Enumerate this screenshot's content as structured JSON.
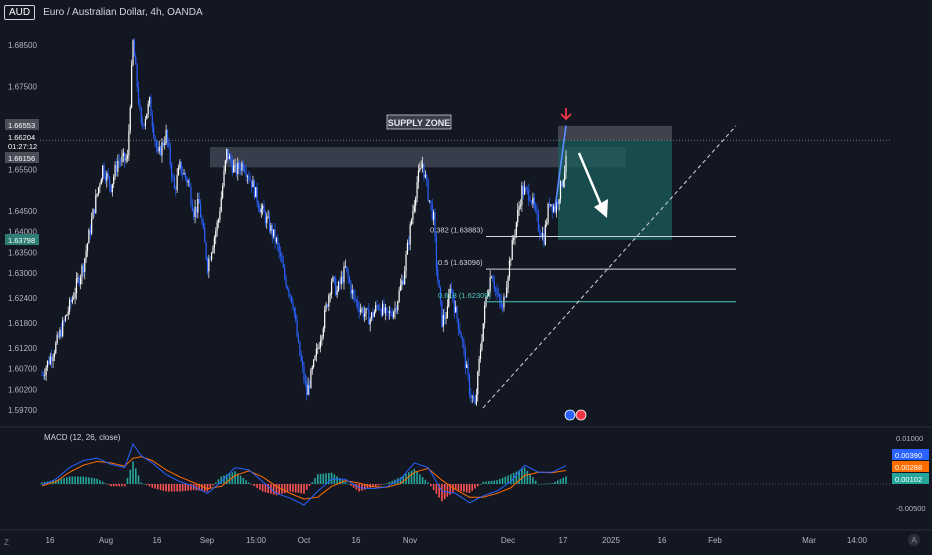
{
  "header": {
    "symbol": "AUD",
    "title": "Euro / Australian Dollar, 4h, OANDA"
  },
  "chart_data": {
    "type": "candlestick",
    "timeframe": "4h",
    "price_axis": {
      "ticks": [
        1.685,
        1.675,
        1.655,
        1.645,
        1.64,
        1.635,
        1.63,
        1.624,
        1.618,
        1.612,
        1.607,
        1.602,
        1.597
      ],
      "tick_labels": [
        "1.68500",
        "1.67500",
        "1.65500",
        "1.64500",
        "1.64000",
        "1.63500",
        "1.63000",
        "1.62400",
        "1.61800",
        "1.61200",
        "1.60700",
        "1.60200",
        "1.59700"
      ],
      "range": [
        1.594,
        1.6885
      ]
    },
    "time_axis": {
      "labels": [
        "16",
        "Aug",
        "16",
        "Sep",
        "15:00",
        "Oct",
        "16",
        "Nov",
        "Dec",
        "17",
        "2025",
        "16",
        "Feb",
        "Mar",
        "14:00"
      ]
    },
    "price_path": [
      [
        0,
        1.6055
      ],
      [
        10,
        1.6125
      ],
      [
        20,
        1.622
      ],
      [
        30,
        1.632
      ],
      [
        38,
        1.646
      ],
      [
        44,
        1.6555
      ],
      [
        50,
        1.651
      ],
      [
        55,
        1.657
      ],
      [
        62,
        1.6575
      ],
      [
        66,
        1.6855
      ],
      [
        72,
        1.665
      ],
      [
        78,
        1.671
      ],
      [
        84,
        1.658
      ],
      [
        90,
        1.6635
      ],
      [
        96,
        1.65
      ],
      [
        100,
        1.6555
      ],
      [
        106,
        1.652
      ],
      [
        110,
        1.645
      ],
      [
        114,
        1.6465
      ],
      [
        120,
        1.632
      ],
      [
        128,
        1.643
      ],
      [
        134,
        1.659
      ],
      [
        140,
        1.6545
      ],
      [
        146,
        1.6565
      ],
      [
        152,
        1.652
      ],
      [
        158,
        1.646
      ],
      [
        164,
        1.642
      ],
      [
        170,
        1.6375
      ],
      [
        176,
        1.629
      ],
      [
        182,
        1.623
      ],
      [
        186,
        1.612
      ],
      [
        192,
        1.601
      ],
      [
        198,
        1.609
      ],
      [
        204,
        1.618
      ],
      [
        210,
        1.6285
      ],
      [
        214,
        1.6255
      ],
      [
        220,
        1.631
      ],
      [
        226,
        1.624
      ],
      [
        232,
        1.621
      ],
      [
        238,
        1.619
      ],
      [
        244,
        1.6225
      ],
      [
        250,
        1.6195
      ],
      [
        256,
        1.6215
      ],
      [
        262,
        1.629
      ],
      [
        268,
        1.643
      ],
      [
        272,
        1.652
      ],
      [
        276,
        1.6565
      ],
      [
        280,
        1.649
      ],
      [
        284,
        1.643
      ],
      [
        286,
        1.632
      ],
      [
        290,
        1.6185
      ],
      [
        294,
        1.6205
      ],
      [
        296,
        1.6275
      ],
      [
        300,
        1.6205
      ],
      [
        304,
        1.615
      ],
      [
        310,
        1.602
      ],
      [
        314,
        1.5975
      ],
      [
        318,
        1.612
      ],
      [
        322,
        1.624
      ],
      [
        326,
        1.6305
      ],
      [
        330,
        1.6245
      ],
      [
        334,
        1.621
      ],
      [
        338,
        1.6305
      ],
      [
        342,
        1.6385
      ],
      [
        348,
        1.65
      ],
      [
        354,
        1.649
      ],
      [
        360,
        1.6415
      ],
      [
        364,
        1.6385
      ],
      [
        368,
        1.6475
      ],
      [
        372,
        1.6455
      ],
      [
        376,
        1.6505
      ],
      [
        380,
        1.6566
      ]
    ],
    "current_price": "1.66204",
    "countdown": "01:27:12",
    "price_labels": [
      "1.66553",
      "1.66156",
      "1.63798"
    ],
    "last_price_level": 1.66204,
    "supply_zone": {
      "label": "SUPPLY ZONE",
      "top": 1.6604,
      "bottom": 1.6555
    },
    "fib_levels": [
      {
        "label": "0.382 (1.63883)",
        "value": 1.63883
      },
      {
        "label": "0.5 (1.63096)",
        "value": 1.63096
      },
      {
        "label": "0.618 (1.62309)",
        "value": 1.62309
      }
    ],
    "trade_box": {
      "top": 1.6655,
      "stop": 1.662,
      "target": 1.63798
    },
    "macd": {
      "title": "MACD (12, 26, close)",
      "ticks": [
        "0.01000",
        "-0.00500"
      ],
      "values": [
        "0.00390",
        "0.00288",
        "0.00102"
      ],
      "colors": [
        "#2962ff",
        "#ff6d00",
        "#26a69a"
      ],
      "path": [
        [
          0,
          -0.0002
        ],
        [
          10,
          0.001
        ],
        [
          20,
          0.0035
        ],
        [
          30,
          0.005
        ],
        [
          40,
          0.0055
        ],
        [
          50,
          0.0042
        ],
        [
          60,
          0.0035
        ],
        [
          66,
          0.0085
        ],
        [
          72,
          0.006
        ],
        [
          80,
          0.0045
        ],
        [
          90,
          0.002
        ],
        [
          100,
          0.0005
        ],
        [
          110,
          -0.0005
        ],
        [
          120,
          -0.002
        ],
        [
          130,
          0.0005
        ],
        [
          140,
          0.0035
        ],
        [
          150,
          0.003
        ],
        [
          160,
          0.0005
        ],
        [
          170,
          -0.002
        ],
        [
          180,
          -0.003
        ],
        [
          190,
          -0.0045
        ],
        [
          200,
          -0.0015
        ],
        [
          210,
          0.001
        ],
        [
          220,
          0.001
        ],
        [
          230,
          -0.0008
        ],
        [
          240,
          -0.001
        ],
        [
          250,
          -0.0006
        ],
        [
          260,
          0.001
        ],
        [
          270,
          0.0045
        ],
        [
          280,
          0.0035
        ],
        [
          290,
          -0.0015
        ],
        [
          300,
          -0.002
        ],
        [
          310,
          -0.004
        ],
        [
          320,
          -0.0025
        ],
        [
          330,
          -0.0015
        ],
        [
          340,
          0.0005
        ],
        [
          350,
          0.004
        ],
        [
          360,
          0.0025
        ],
        [
          370,
          0.0025
        ],
        [
          380,
          0.0039
        ]
      ],
      "signal_path": [
        [
          0,
          -0.0004
        ],
        [
          10,
          0.0005
        ],
        [
          20,
          0.0025
        ],
        [
          30,
          0.004
        ],
        [
          40,
          0.0048
        ],
        [
          50,
          0.0045
        ],
        [
          60,
          0.0038
        ],
        [
          66,
          0.0055
        ],
        [
          72,
          0.0058
        ],
        [
          80,
          0.005
        ],
        [
          90,
          0.003
        ],
        [
          100,
          0.0015
        ],
        [
          110,
          0.0003
        ],
        [
          120,
          -0.001
        ],
        [
          130,
          -0.0005
        ],
        [
          140,
          0.0018
        ],
        [
          150,
          0.0028
        ],
        [
          160,
          0.0015
        ],
        [
          170,
          -0.0005
        ],
        [
          180,
          -0.002
        ],
        [
          190,
          -0.0032
        ],
        [
          200,
          -0.0028
        ],
        [
          210,
          -0.0005
        ],
        [
          220,
          0.0007
        ],
        [
          230,
          0.0002
        ],
        [
          240,
          -0.0006
        ],
        [
          250,
          -0.0007
        ],
        [
          260,
          0.0001
        ],
        [
          270,
          0.0025
        ],
        [
          280,
          0.0033
        ],
        [
          290,
          0.0008
        ],
        [
          300,
          -0.0012
        ],
        [
          310,
          -0.0028
        ],
        [
          320,
          -0.0028
        ],
        [
          330,
          -0.002
        ],
        [
          340,
          -0.0008
        ],
        [
          350,
          0.0018
        ],
        [
          360,
          0.0025
        ],
        [
          370,
          0.0024
        ],
        [
          380,
          0.00288
        ]
      ]
    }
  },
  "footer": {
    "tz_badge": "Z",
    "auto_badge": "A"
  }
}
